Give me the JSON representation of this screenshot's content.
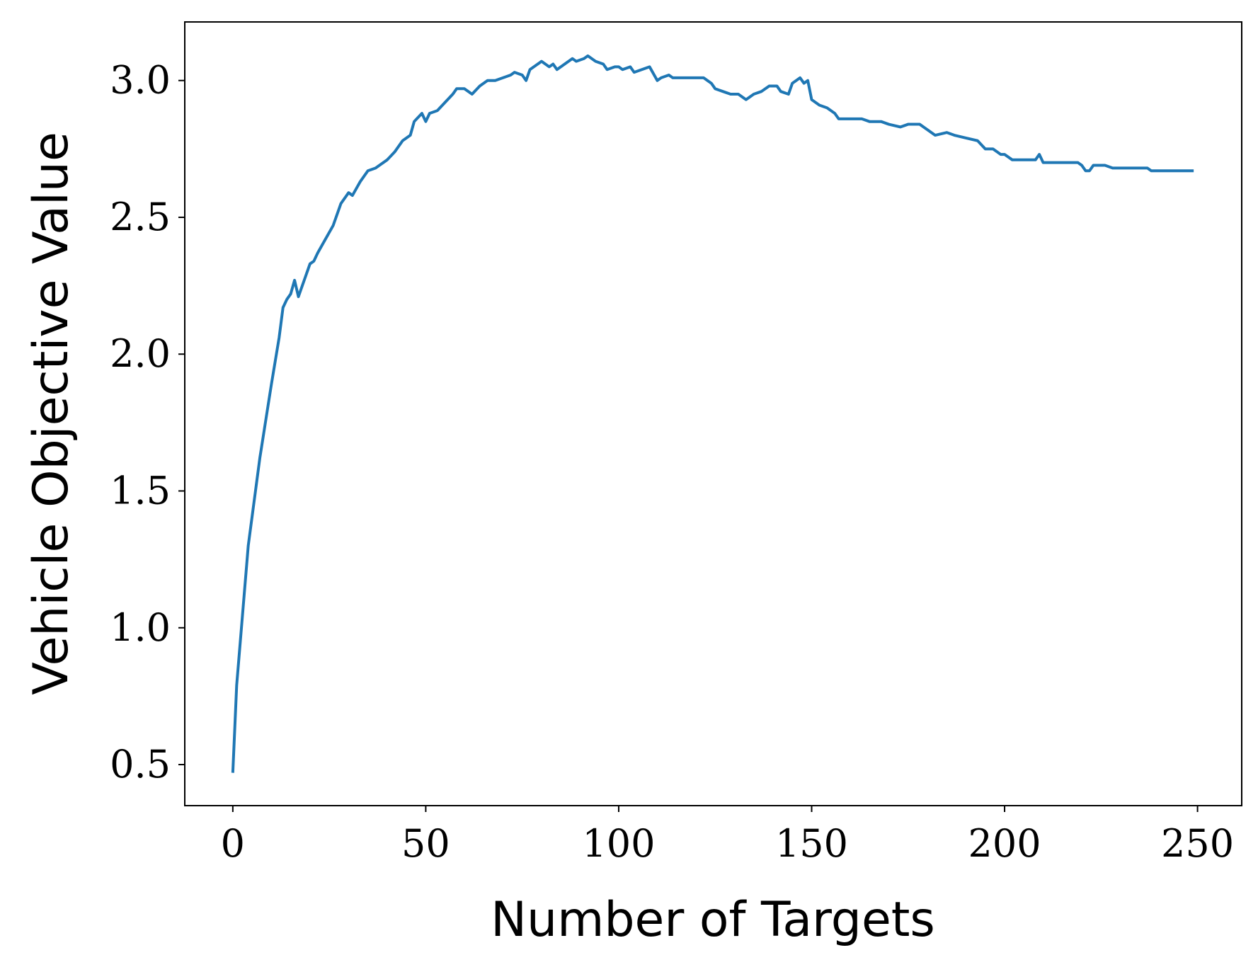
{
  "chart_data": {
    "type": "line",
    "xlabel": "Number of Targets",
    "ylabel": "Vehicle Objective Value",
    "x": [
      0,
      1,
      4,
      7,
      10,
      12,
      13,
      14,
      15,
      16,
      17,
      18,
      20,
      21,
      22,
      24,
      26,
      27,
      28,
      30,
      31,
      33,
      35,
      37,
      38,
      40,
      42,
      44,
      46,
      47,
      49,
      50,
      51,
      53,
      55,
      57,
      58,
      60,
      61,
      62,
      64,
      66,
      68,
      70,
      72,
      73,
      75,
      76,
      77,
      80,
      82,
      83,
      84,
      86,
      88,
      89,
      91,
      92,
      94,
      96,
      97,
      99,
      100,
      101,
      103,
      104,
      106,
      108,
      110,
      111,
      113,
      114,
      116,
      118,
      120,
      122,
      124,
      125,
      127,
      129,
      131,
      132,
      133,
      135,
      137,
      139,
      141,
      142,
      144,
      145,
      147,
      148,
      149,
      150,
      152,
      154,
      156,
      157,
      160,
      163,
      165,
      168,
      170,
      173,
      175,
      178,
      180,
      182,
      185,
      187,
      190,
      193,
      195,
      197,
      199,
      200,
      202,
      205,
      208,
      209,
      210,
      213,
      216,
      219,
      220,
      221,
      222,
      223,
      226,
      228,
      231,
      234,
      235,
      237,
      238,
      241,
      244,
      247,
      249
    ],
    "series": [
      {
        "name": "Vehicle Objective Value",
        "color": "#1f77b4",
        "values": [
          0.47,
          0.79,
          1.3,
          1.62,
          1.89,
          2.06,
          2.17,
          2.2,
          2.22,
          2.27,
          2.21,
          2.25,
          2.33,
          2.34,
          2.37,
          2.42,
          2.47,
          2.51,
          2.55,
          2.59,
          2.58,
          2.63,
          2.67,
          2.68,
          2.69,
          2.71,
          2.74,
          2.78,
          2.8,
          2.85,
          2.88,
          2.85,
          2.88,
          2.89,
          2.92,
          2.95,
          2.97,
          2.97,
          2.96,
          2.95,
          2.98,
          3.0,
          3.0,
          3.01,
          3.02,
          3.03,
          3.02,
          3.0,
          3.04,
          3.07,
          3.05,
          3.06,
          3.04,
          3.06,
          3.08,
          3.07,
          3.08,
          3.09,
          3.07,
          3.06,
          3.04,
          3.05,
          3.05,
          3.04,
          3.05,
          3.03,
          3.04,
          3.05,
          3.0,
          3.01,
          3.02,
          3.01,
          3.01,
          3.01,
          3.01,
          3.01,
          2.99,
          2.97,
          2.96,
          2.95,
          2.95,
          2.94,
          2.93,
          2.95,
          2.96,
          2.98,
          2.98,
          2.96,
          2.95,
          2.99,
          3.01,
          2.99,
          3.0,
          2.93,
          2.91,
          2.9,
          2.88,
          2.86,
          2.86,
          2.86,
          2.85,
          2.85,
          2.84,
          2.83,
          2.84,
          2.84,
          2.82,
          2.8,
          2.81,
          2.8,
          2.79,
          2.78,
          2.75,
          2.75,
          2.73,
          2.73,
          2.71,
          2.71,
          2.71,
          2.73,
          2.7,
          2.7,
          2.7,
          2.7,
          2.69,
          2.67,
          2.67,
          2.69,
          2.69,
          2.68,
          2.68,
          2.68,
          2.68,
          2.68,
          2.67,
          2.67,
          2.67,
          2.67,
          2.67
        ]
      }
    ],
    "xlim": [
      -12.45,
      261.45
    ],
    "ylim": [
      0.35,
      3.214
    ],
    "xticks": [
      0,
      50,
      100,
      150,
      200,
      250
    ],
    "yticks": [
      {
        "value": 0.5,
        "label": "0.5"
      },
      {
        "value": 1.0,
        "label": "1.0"
      },
      {
        "value": 1.5,
        "label": "1.5"
      },
      {
        "value": 2.0,
        "label": "2.0"
      },
      {
        "value": 2.5,
        "label": "2.5"
      },
      {
        "value": 3.0,
        "label": "3.0"
      }
    ],
    "grid": false
  }
}
